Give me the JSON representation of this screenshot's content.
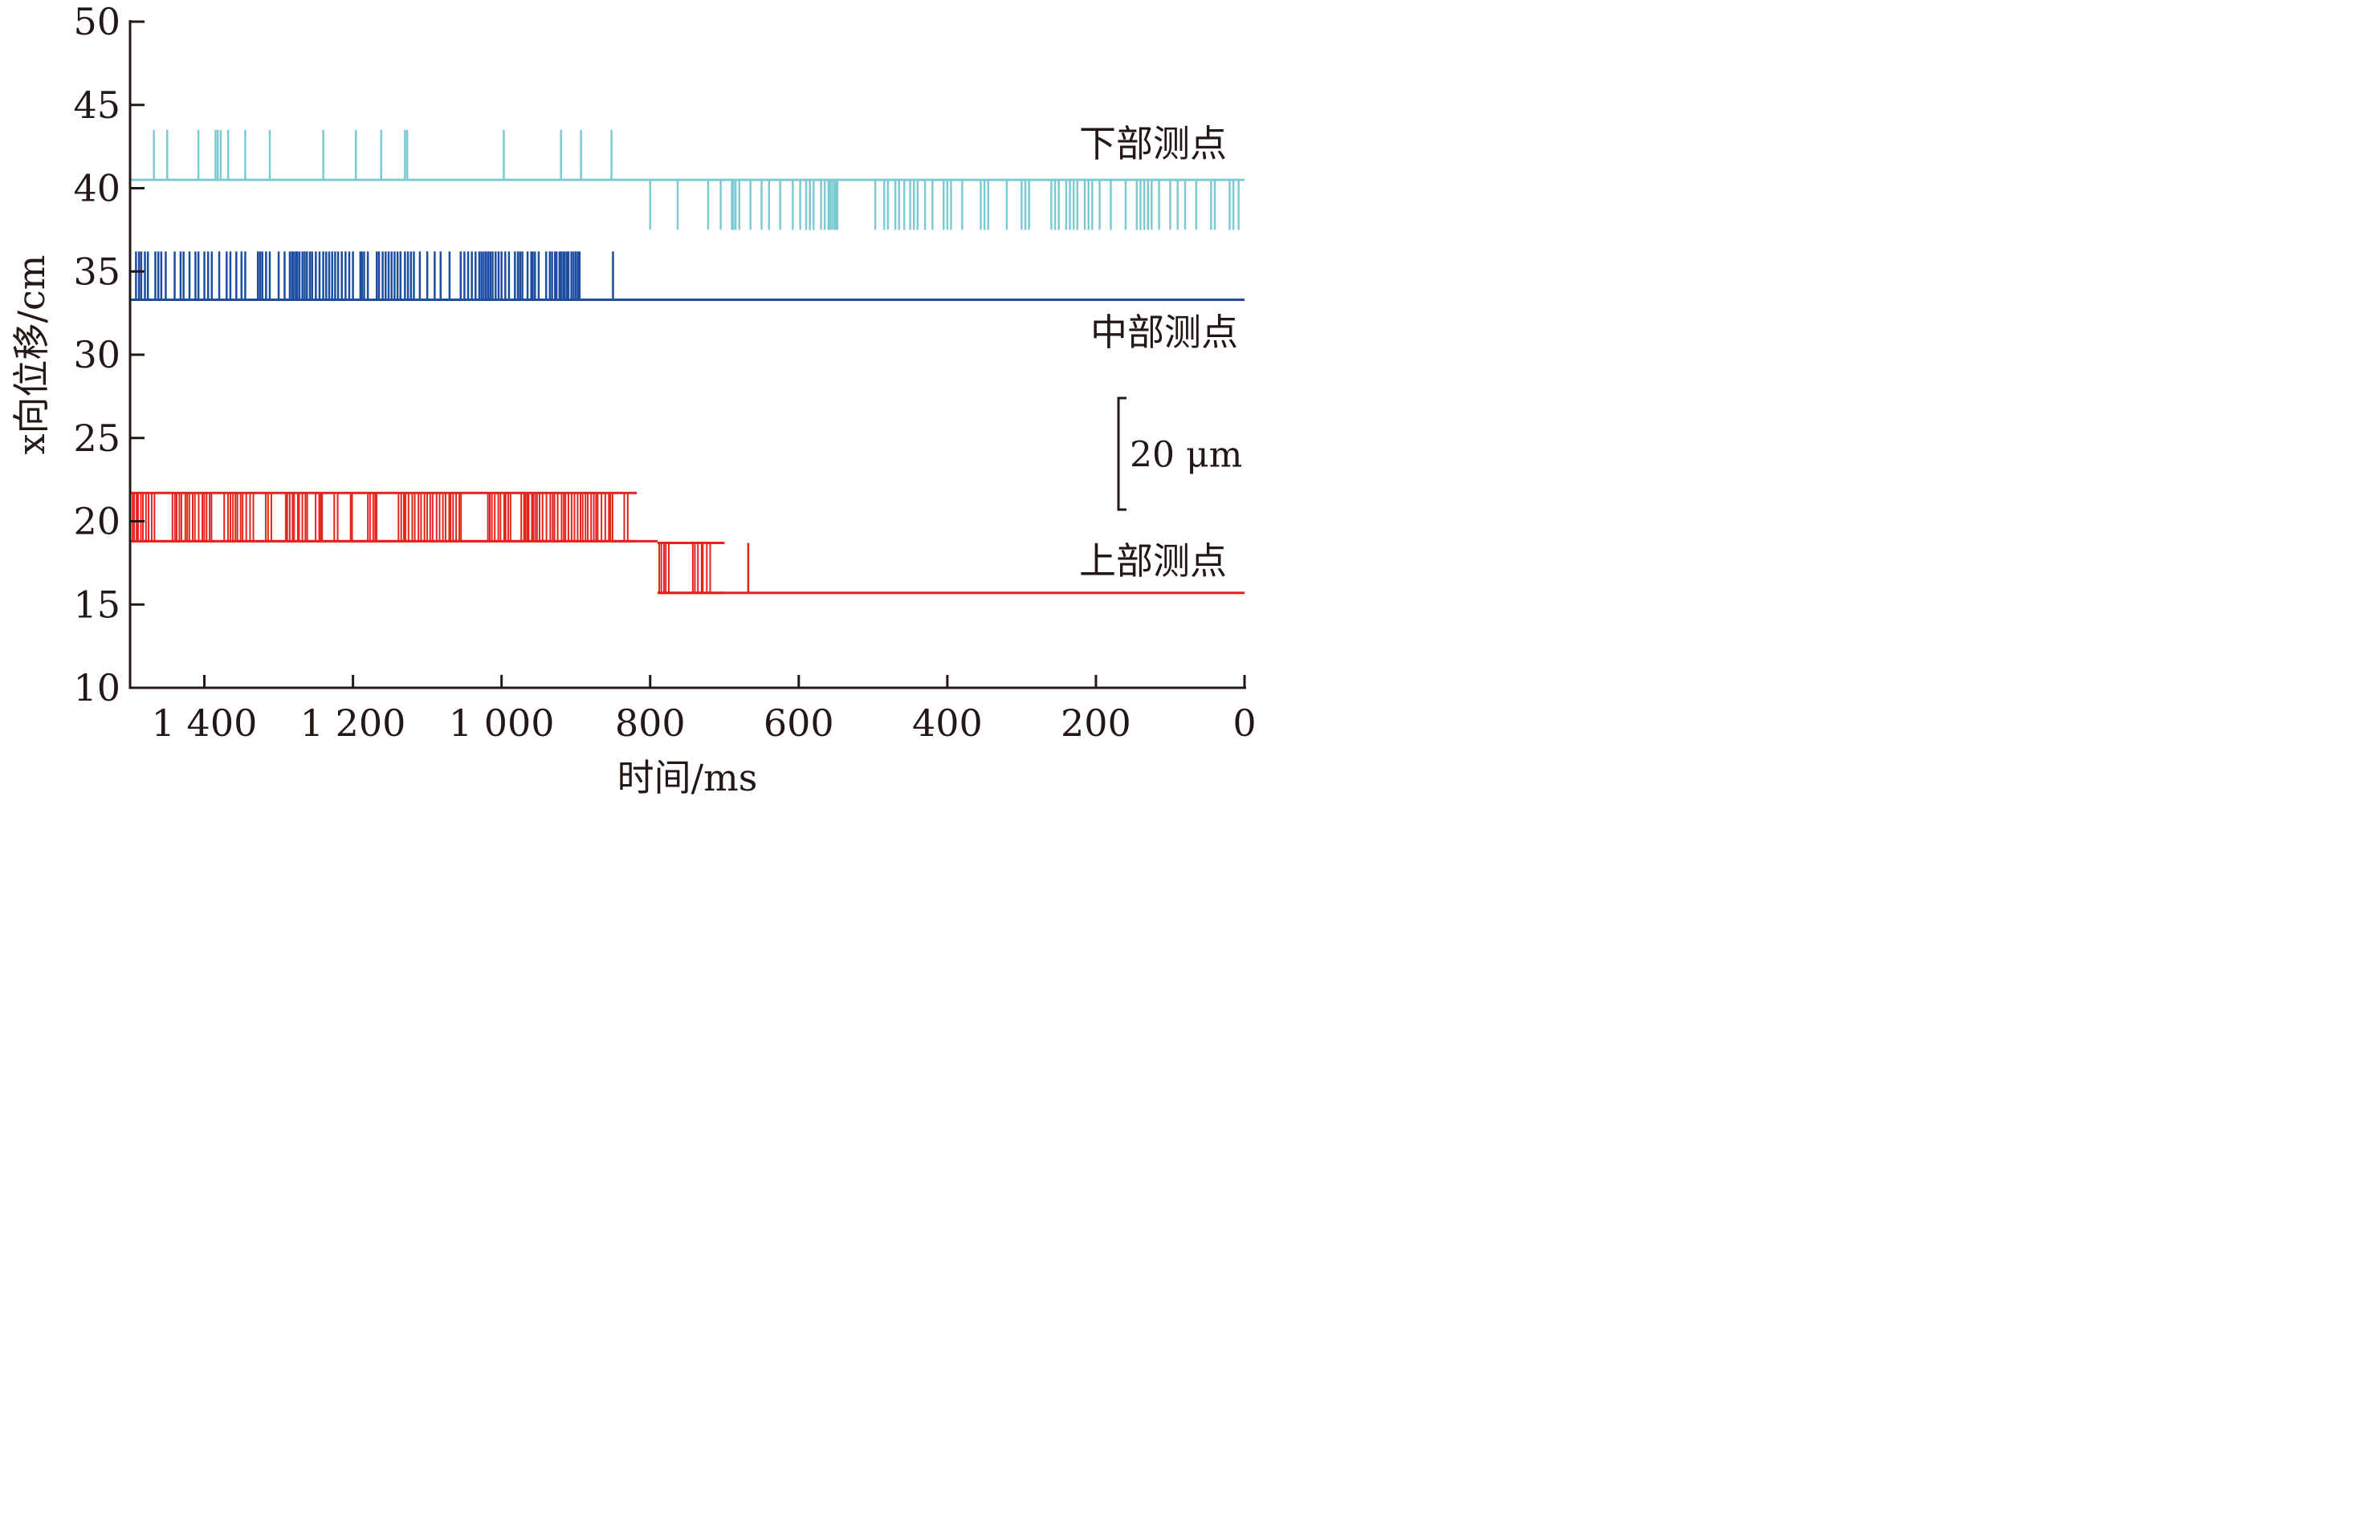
{
  "chart_data": {
    "type": "line",
    "xlabel": "时间/ms",
    "ylabel": "x向位移/cm",
    "xlim": [
      1500,
      0
    ],
    "ylim": [
      10,
      50
    ],
    "x_ticks": [
      {
        "value": 1400,
        "label": "1 400"
      },
      {
        "value": 1200,
        "label": "1 200"
      },
      {
        "value": 1000,
        "label": "1 000"
      },
      {
        "value": 800,
        "label": "800"
      },
      {
        "value": 600,
        "label": "600"
      },
      {
        "value": 400,
        "label": "400"
      },
      {
        "value": 200,
        "label": "200"
      },
      {
        "value": 0,
        "label": "0"
      }
    ],
    "y_ticks": [
      {
        "value": 50,
        "label": "50"
      },
      {
        "value": 45,
        "label": "45"
      },
      {
        "value": 40,
        "label": "40"
      },
      {
        "value": 35,
        "label": "35"
      },
      {
        "value": 30,
        "label": "30"
      },
      {
        "value": 25,
        "label": "25"
      },
      {
        "value": 20,
        "label": "20"
      },
      {
        "value": 15,
        "label": "15"
      },
      {
        "value": 10,
        "label": "10"
      }
    ],
    "scale_bar": {
      "label": "20 μm",
      "y_from": 20.7,
      "y_to": 27.4
    },
    "series": [
      {
        "name": "下部测点",
        "color": "#7ecad3",
        "baseline": 40.5,
        "segments": [
          {
            "x_from": 1500,
            "x_to": 850,
            "spike_to": 43.5,
            "spike_x": [
              1468,
              1450,
              1408,
              1385,
              1382,
              1378,
              1368,
              1345,
              1312,
              1240,
              1196,
              1162,
              1130,
              1127,
              997,
              920,
              893,
              852
            ]
          },
          {
            "x_from": 850,
            "x_to": 0,
            "spike_to": 37.5,
            "spike_x": [
              800,
              763,
              722,
              705,
              690,
              688,
              685,
              680,
              665,
              650,
              640,
              625,
              608,
              598,
              590,
              585,
              580,
              570,
              565,
              560,
              558,
              555,
              552,
              550,
              548,
              497,
              485,
              480,
              470,
              465,
              458,
              450,
              445,
              440,
              430,
              420,
              405,
              400,
              395,
              380,
              355,
              350,
              345,
              320,
              300,
              295,
              290,
              260,
              255,
              250,
              240,
              235,
              230,
              225,
              215,
              210,
              205,
              195,
              180,
              160,
              145,
              140,
              135,
              130,
              125,
              115,
              100,
              90,
              80,
              65,
              45,
              40,
              20,
              15,
              8
            ]
          }
        ]
      },
      {
        "name": "中部测点",
        "color": "#1c4da1",
        "baseline": 33.3,
        "segments": [
          {
            "x_from": 1500,
            "x_to": 0,
            "spike_to": 36.2,
            "spike_x": [
              1492,
              1488,
              1485,
              1480,
              1476,
              1466,
              1462,
              1458,
              1452,
              1440,
              1432,
              1428,
              1420,
              1412,
              1408,
              1400,
              1395,
              1390,
              1380,
              1370,
              1365,
              1357,
              1350,
              1345,
              1328,
              1325,
              1322,
              1317,
              1312,
              1300,
              1292,
              1285,
              1282,
              1280,
              1277,
              1275,
              1272,
              1268,
              1265,
              1262,
              1258,
              1255,
              1250,
              1245,
              1240,
              1236,
              1232,
              1228,
              1224,
              1220,
              1215,
              1210,
              1205,
              1200,
              1190,
              1188,
              1185,
              1180,
              1168,
              1165,
              1160,
              1156,
              1152,
              1148,
              1144,
              1140,
              1136,
              1130,
              1126,
              1122,
              1118,
              1110,
              1100,
              1090,
              1082,
              1070,
              1055,
              1050,
              1045,
              1040,
              1035,
              1030,
              1027,
              1024,
              1021,
              1018,
              1015,
              1012,
              1008,
              1004,
              1000,
              995,
              990,
              982,
              978,
              975,
              972,
              965,
              960,
              958,
              955,
              950,
              940,
              935,
              932,
              928,
              926,
              922,
              920,
              917,
              915,
              912,
              910,
              906,
              903,
              900,
              897,
              895,
              850
            ]
          }
        ]
      },
      {
        "name": "上部测点",
        "color": "#e5231d",
        "baseline": 15.7,
        "segments": [
          {
            "x_from": 1500,
            "x_to": 818,
            "band_low": 18.8,
            "band_high": 21.7,
            "level": 18.8
          },
          {
            "x_from": 818,
            "x_to": 790,
            "level": 18.8
          },
          {
            "x_from": 790,
            "x_to": 700,
            "band_low": 15.7,
            "band_high": 18.7,
            "level": 15.7
          },
          {
            "x_from": 700,
            "x_to": 0,
            "level": 15.7,
            "spike_to": 18.7,
            "spike_x": [
              668
            ]
          }
        ]
      }
    ]
  }
}
